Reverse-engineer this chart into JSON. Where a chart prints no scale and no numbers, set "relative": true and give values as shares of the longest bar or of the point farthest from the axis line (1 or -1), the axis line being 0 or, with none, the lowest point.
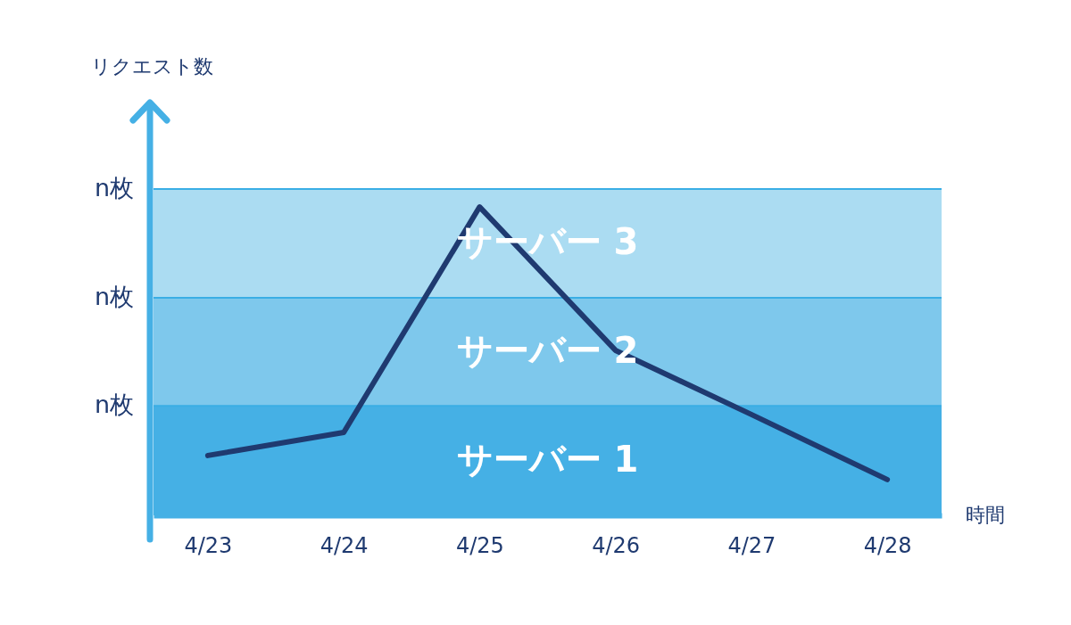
{
  "chart_data": {
    "type": "line",
    "relative": true,
    "annotations": [
      "リクエスト数"
    ],
    "xlabel": "時間",
    "categories": [
      "4/23",
      "4/24",
      "4/25",
      "4/26",
      "4/27",
      "4/28"
    ],
    "series": [
      {
        "color": "#1f3a70",
        "values": [
          0.194,
          0.269,
          1,
          0.535,
          0.327,
          0.116
        ]
      }
    ],
    "bands": [
      {
        "axis": "y",
        "from": 0,
        "to": 0.355,
        "label": "サーバー 1",
        "color": "#45b0e5"
      },
      {
        "axis": "y",
        "from": 0.355,
        "to": 0.705,
        "label": "サーバー 2",
        "color": "#7ec8ec"
      },
      {
        "axis": "y",
        "from": 0.705,
        "to": 1.058,
        "label": "サーバー 3",
        "color": "#abdcf2"
      }
    ],
    "ref_lines": [
      {
        "axis": "y",
        "value": 0.355,
        "label": "n枚",
        "color": "#3aaee5"
      },
      {
        "axis": "y",
        "value": 0.705,
        "label": "n枚",
        "color": "#3aaee5"
      },
      {
        "axis": "y",
        "value": 1.058,
        "label": "n枚",
        "color": "#3aaee5"
      }
    ]
  }
}
